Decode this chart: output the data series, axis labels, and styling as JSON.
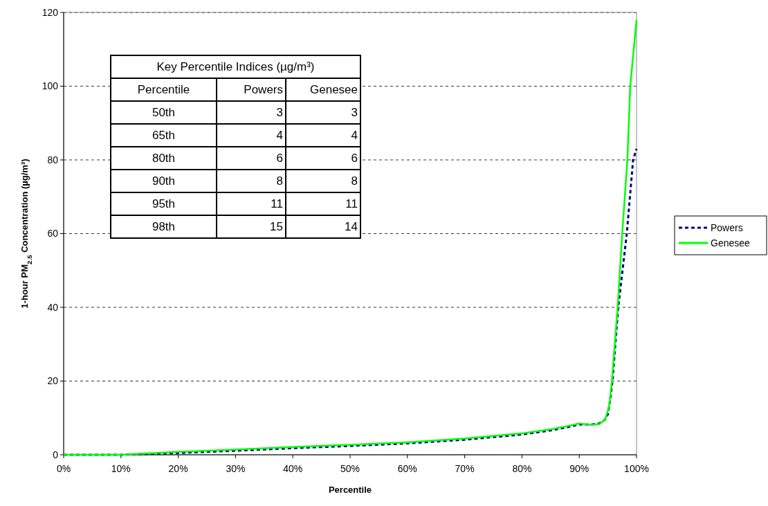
{
  "chart_data": {
    "type": "line",
    "xlabel": "Percentile",
    "ylabel": "1-hour PM$_{2.5}$ Concentration (µg/m³)",
    "xlim": [
      0,
      100
    ],
    "ylim": [
      0,
      120
    ],
    "xticks": [
      {
        "value": 0,
        "label": "0%"
      },
      {
        "value": 10,
        "label": "10%"
      },
      {
        "value": 20,
        "label": "20%"
      },
      {
        "value": 30,
        "label": "30%"
      },
      {
        "value": 40,
        "label": "40%"
      },
      {
        "value": 50,
        "label": "50%"
      },
      {
        "value": 60,
        "label": "60%"
      },
      {
        "value": 70,
        "label": "70%"
      },
      {
        "value": 80,
        "label": "80%"
      },
      {
        "value": 90,
        "label": "90%"
      },
      {
        "value": 100,
        "label": "100%"
      }
    ],
    "yticks": [
      0,
      20,
      40,
      60,
      80,
      100,
      120
    ],
    "grid": "y",
    "legend": "right",
    "series": [
      {
        "name": "Powers",
        "color": "#000080",
        "line_style": "dashed",
        "x": [
          0,
          10,
          20,
          30,
          40,
          50,
          60,
          70,
          80,
          85,
          88,
          90,
          92,
          93.5,
          94.5,
          95,
          95.4,
          95.8,
          96.8,
          98.3,
          99.4,
          100
        ],
        "values": [
          0,
          0,
          0.5,
          1.1,
          1.8,
          2.4,
          3.1,
          4.1,
          5.5,
          6.6,
          7.5,
          8.2,
          8.2,
          8.5,
          9.5,
          11,
          15,
          20,
          40,
          60,
          80,
          83
        ]
      },
      {
        "name": "Genesee",
        "color": "#00ff00",
        "line_style": "solid",
        "x": [
          0,
          10,
          20,
          30,
          40,
          50,
          60,
          70,
          80,
          85,
          88,
          90,
          92,
          93.5,
          94.5,
          95.2,
          95.7,
          96.7,
          97.5,
          98.4,
          98.9,
          100
        ],
        "values": [
          0,
          0,
          0.8,
          1.4,
          2.1,
          2.7,
          3.4,
          4.4,
          5.8,
          6.9,
          7.8,
          8.5,
          8.1,
          8.3,
          9.5,
          13,
          20,
          40,
          60,
          80,
          100,
          118
        ]
      }
    ],
    "annotations": [
      "Key Percentile Indices (µg/m³)",
      "Percentile",
      "Powers",
      "Genesee",
      "50th",
      "3",
      "3",
      "65th",
      "4",
      "4",
      "80th",
      "6",
      "6",
      "90th",
      "8",
      "8",
      "95th",
      "11",
      "11",
      "98th",
      "15",
      "14"
    ]
  }
}
